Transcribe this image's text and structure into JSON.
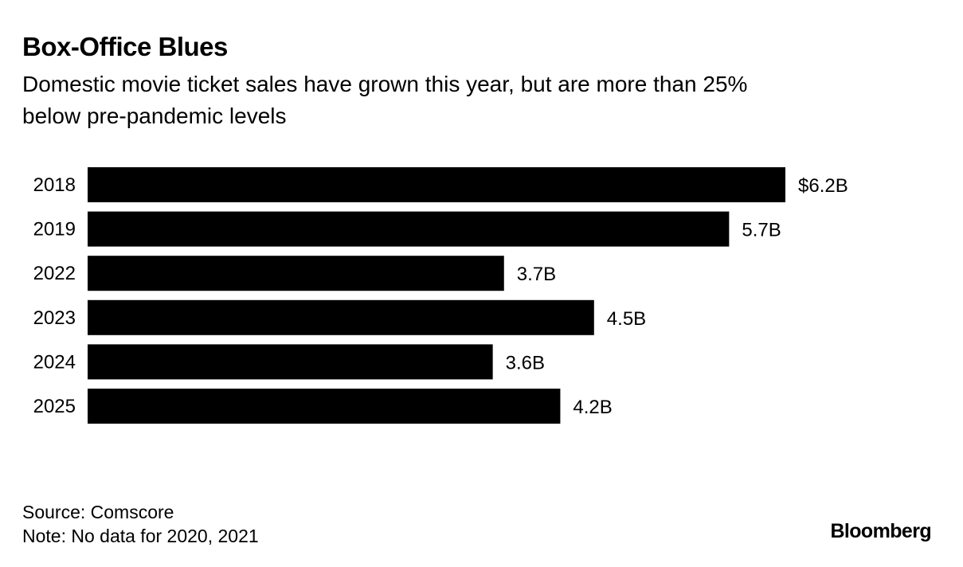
{
  "header": {
    "title": "Box-Office Blues",
    "subtitle_line1": "Domestic movie ticket sales have grown this year, but are more than 25%",
    "subtitle_line2": "below pre-pandemic levels"
  },
  "chart_data": {
    "type": "bar",
    "orientation": "horizontal",
    "categories": [
      "2018",
      "2019",
      "2022",
      "2023",
      "2024",
      "2025"
    ],
    "values": [
      6.2,
      5.7,
      3.7,
      4.5,
      3.6,
      4.2
    ],
    "data_labels": [
      "$6.2B",
      "5.7B",
      "3.7B",
      "4.5B",
      "3.6B",
      "4.2B"
    ],
    "title": "Box-Office Blues",
    "subtitle": "Domestic movie ticket sales have grown this year, but are more than 25% below pre-pandemic levels",
    "xlabel": "",
    "ylabel": "",
    "xlim": [
      0,
      6.2
    ],
    "grid": false,
    "bar_color": "#000000"
  },
  "footer": {
    "source": "Source: Comscore",
    "note": "Note: No data for 2020, 2021",
    "brand": "Bloomberg"
  }
}
